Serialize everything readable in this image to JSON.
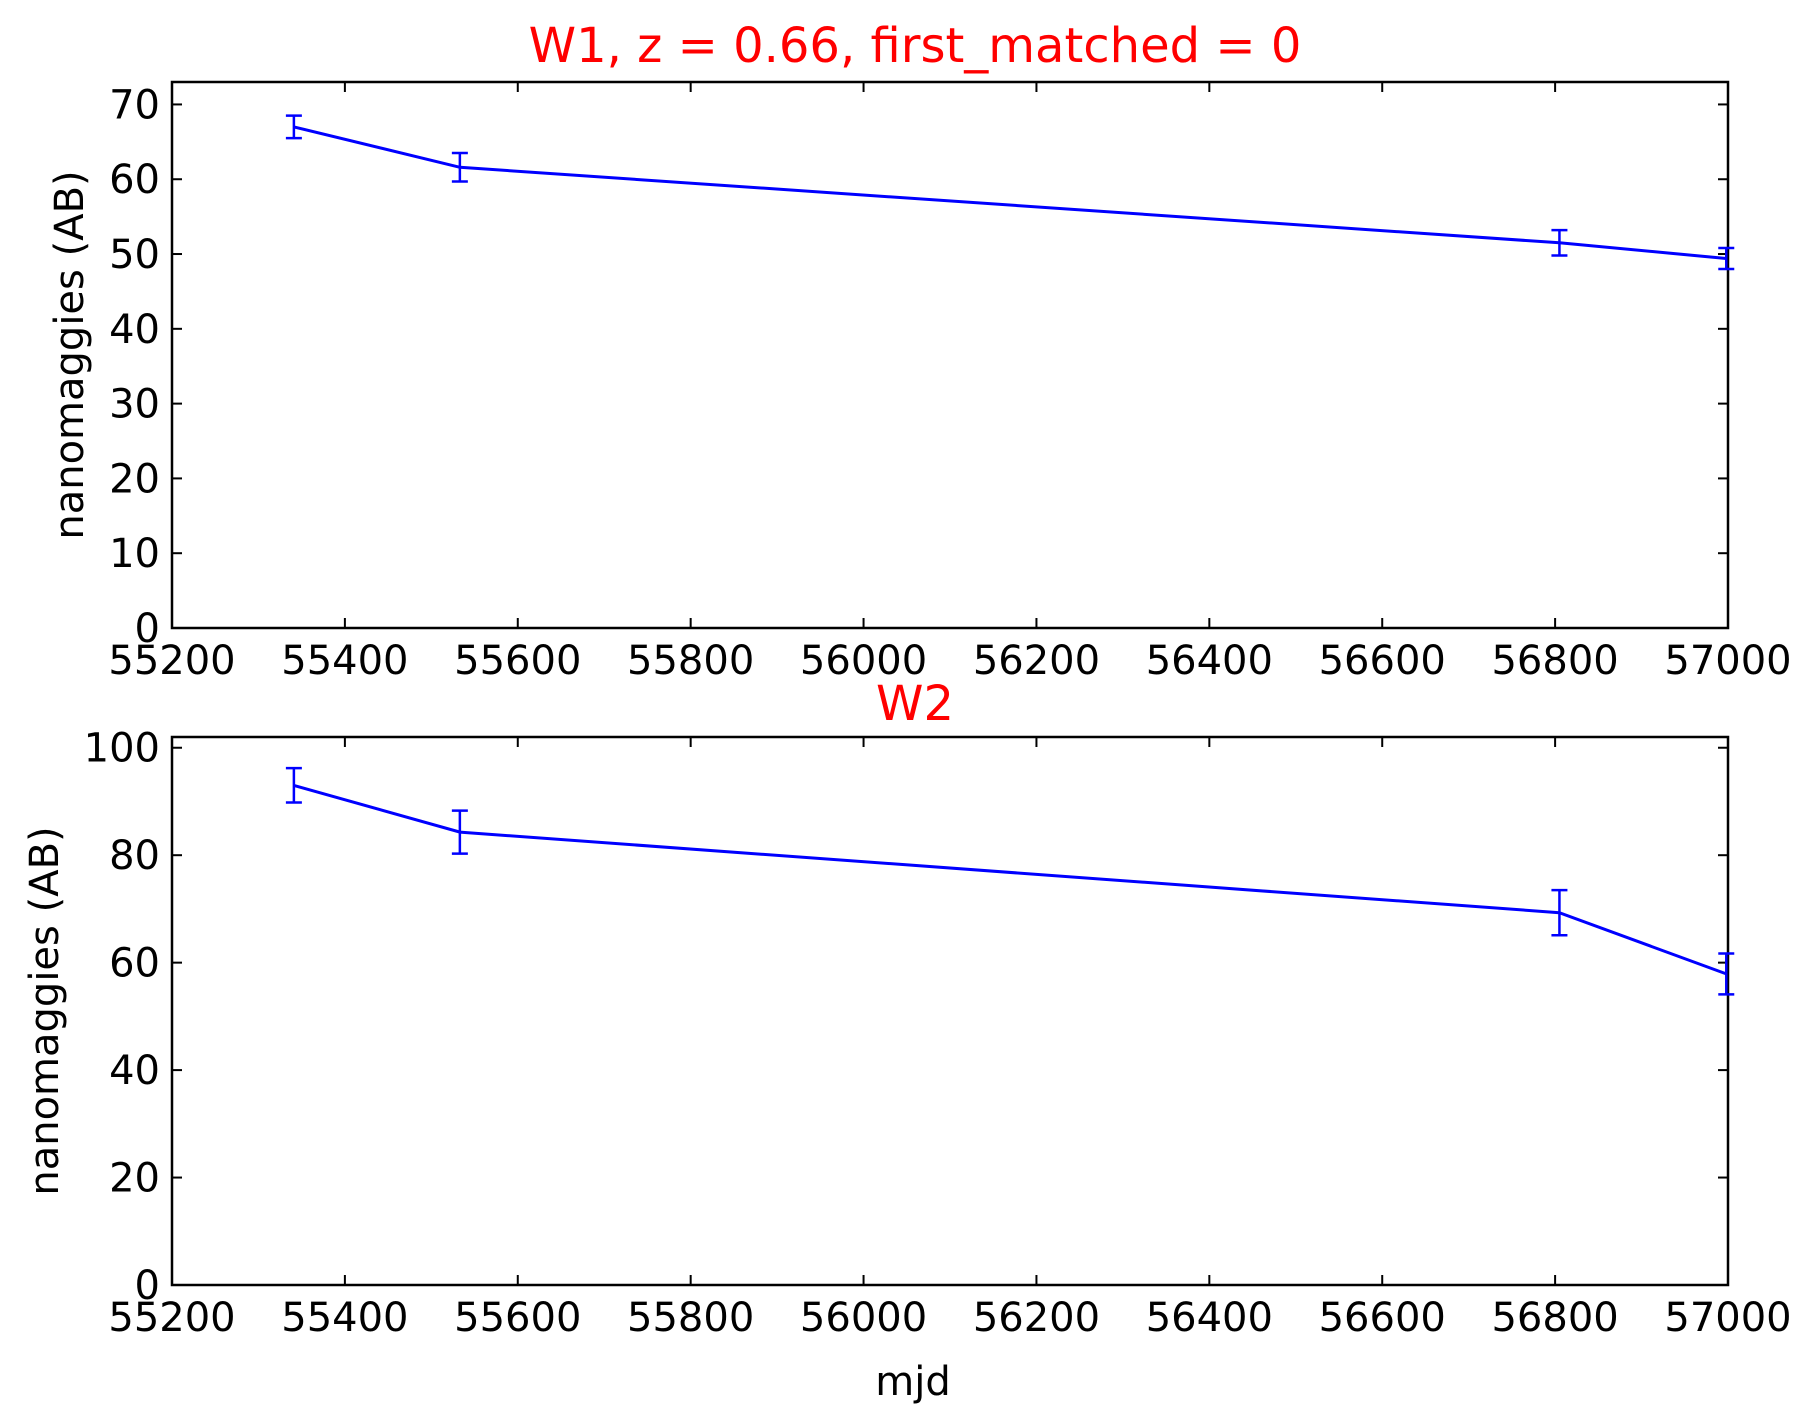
{
  "chart_data": [
    {
      "type": "line",
      "title": "W1, z = 0.66, first_matched = 0",
      "title_color": "#ff0000",
      "xlabel": "",
      "ylabel": "nanomaggies (AB)",
      "xlim": [
        55200,
        57000
      ],
      "ylim": [
        0,
        73
      ],
      "xticks": [
        55200,
        55400,
        55600,
        55800,
        56000,
        56200,
        56400,
        56600,
        56800,
        57000
      ],
      "yticks": [
        0,
        10,
        20,
        30,
        40,
        50,
        60,
        70
      ],
      "grid": false,
      "series": [
        {
          "color": "#0000ff",
          "x": [
            55341,
            55533,
            56805,
            56998
          ],
          "y": [
            67.0,
            61.6,
            51.5,
            49.4
          ],
          "yerr": [
            1.5,
            1.9,
            1.7,
            1.4
          ]
        }
      ]
    },
    {
      "type": "line",
      "title": "W2",
      "title_color": "#ff0000",
      "xlabel": "mjd",
      "ylabel": "nanomaggies (AB)",
      "xlim": [
        55200,
        57000
      ],
      "ylim": [
        0,
        102
      ],
      "xticks": [
        55200,
        55400,
        55600,
        55800,
        56000,
        56200,
        56400,
        56600,
        56800,
        57000
      ],
      "yticks": [
        0,
        20,
        40,
        60,
        80,
        100
      ],
      "grid": false,
      "series": [
        {
          "color": "#0000ff",
          "x": [
            55341,
            55533,
            56805,
            56998
          ],
          "y": [
            93.0,
            84.3,
            69.3,
            57.9
          ],
          "yerr": [
            3.2,
            4.0,
            4.2,
            3.8
          ]
        }
      ]
    }
  ]
}
